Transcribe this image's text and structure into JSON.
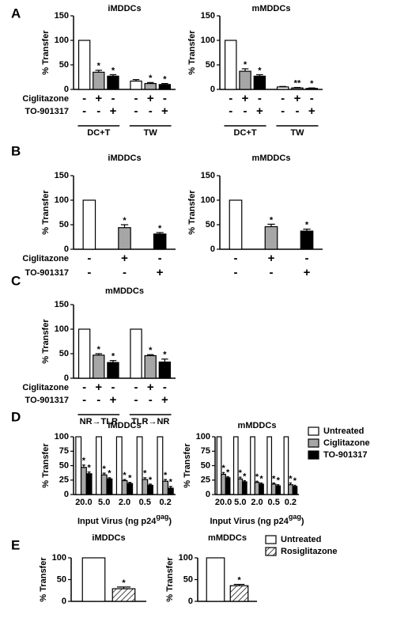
{
  "chart_data": [
    {
      "type": "bar",
      "panel": "A",
      "title": "iMDDCs",
      "y_label": "% Transfer",
      "ylim": [
        0,
        150
      ],
      "yticks": [
        0,
        50,
        100,
        150
      ],
      "values": [
        100,
        35,
        27,
        17,
        12,
        10
      ],
      "errors": [
        null,
        4,
        3,
        3,
        2,
        2
      ],
      "significance": [
        null,
        "*",
        "*",
        null,
        "*",
        "*"
      ],
      "colors": [
        "#ffffff",
        "#a6a6a6",
        "#000000",
        "#ffffff",
        "#a6a6a6",
        "#000000"
      ],
      "treatments": [
        {
          "name": "Ciglitazone",
          "signs": [
            "-",
            "+",
            "-",
            "-",
            "+",
            "-"
          ]
        },
        {
          "name": "TO-901317",
          "signs": [
            "-",
            "-",
            "+",
            "-",
            "-",
            "+"
          ]
        }
      ],
      "groups": [
        "DC+T",
        "TW"
      ]
    },
    {
      "type": "bar",
      "title": "mMDDCs",
      "y_label": "% Transfer",
      "ylim": [
        0,
        150
      ],
      "yticks": [
        0,
        50,
        100,
        150
      ],
      "values": [
        100,
        37,
        27,
        5,
        3,
        2
      ],
      "errors": [
        null,
        5,
        3,
        1,
        1,
        1
      ],
      "significance": [
        null,
        "*",
        "*",
        null,
        "**",
        "*"
      ],
      "colors": [
        "#ffffff",
        "#a6a6a6",
        "#000000",
        "#ffffff",
        "#a6a6a6",
        "#000000"
      ],
      "treatments": [
        {
          "signs": [
            "-",
            "+",
            "-",
            "-",
            "+",
            "-"
          ]
        },
        {
          "signs": [
            "-",
            "-",
            "+",
            "-",
            "-",
            "+"
          ]
        }
      ],
      "groups": [
        "DC+T",
        "TW"
      ]
    },
    {
      "type": "bar",
      "panel": "B",
      "title": "iMDDCs",
      "y_label": "% Transfer",
      "ylim": [
        0,
        150
      ],
      "yticks": [
        0,
        50,
        100,
        150
      ],
      "values": [
        100,
        44,
        31
      ],
      "errors": [
        null,
        6,
        3
      ],
      "significance": [
        null,
        "*",
        "*"
      ],
      "colors": [
        "#ffffff",
        "#a6a6a6",
        "#000000"
      ],
      "treatments": [
        {
          "name": "Ciglitazone",
          "signs": [
            "-",
            "+",
            "-"
          ]
        },
        {
          "name": "TO-901317",
          "signs": [
            "-",
            "-",
            "+"
          ]
        }
      ]
    },
    {
      "type": "bar",
      "title": "mMDDCs",
      "y_label": "% Transfer",
      "ylim": [
        0,
        150
      ],
      "yticks": [
        0,
        50,
        100,
        150
      ],
      "values": [
        100,
        46,
        37
      ],
      "errors": [
        null,
        5,
        4
      ],
      "significance": [
        null,
        "*",
        "*"
      ],
      "colors": [
        "#ffffff",
        "#a6a6a6",
        "#000000"
      ],
      "treatments": [
        {
          "signs": [
            "-",
            "+",
            "-"
          ]
        },
        {
          "signs": [
            "-",
            "-",
            "+"
          ]
        }
      ]
    },
    {
      "type": "bar",
      "panel": "C",
      "title": "mMDDCs",
      "y_label": "% Transfer",
      "ylim": [
        0,
        150
      ],
      "yticks": [
        0,
        50,
        100,
        150
      ],
      "values": [
        100,
        47,
        32,
        100,
        46,
        33
      ],
      "errors": [
        null,
        3,
        4,
        null,
        2,
        6
      ],
      "significance": [
        null,
        "*",
        "*",
        null,
        "*",
        "*"
      ],
      "colors": [
        "#ffffff",
        "#a6a6a6",
        "#000000",
        "#ffffff",
        "#a6a6a6",
        "#000000"
      ],
      "treatments": [
        {
          "name": "Ciglitazone",
          "signs": [
            "-",
            "+",
            "-",
            "-",
            "+",
            "-"
          ]
        },
        {
          "name": "TO-901317",
          "signs": [
            "-",
            "-",
            "+",
            "-",
            "-",
            "+"
          ]
        }
      ],
      "groups": [
        "NR→TLR",
        "TLR→NR"
      ]
    },
    {
      "type": "grouped_bar",
      "panel": "D",
      "title": "iMDDCs",
      "y_label": "% Transfer",
      "ylim": [
        0,
        100
      ],
      "yticks": [
        0,
        25,
        50,
        75,
        100
      ],
      "categories": [
        "20.0",
        "5.0",
        "2.0",
        "0.5",
        "0.2"
      ],
      "x_label": {
        "text": "Input Virus  (ng p24",
        "sup": "gag",
        "end": ")"
      },
      "series": [
        {
          "color": "#ffffff",
          "values": [
            100,
            100,
            100,
            100,
            100
          ],
          "errors": [
            null,
            null,
            null,
            null,
            null
          ],
          "significance": [
            null,
            null,
            null,
            null,
            null
          ]
        },
        {
          "color": "#a6a6a6",
          "values": [
            47,
            34,
            24,
            26,
            23
          ],
          "errors": [
            4,
            3,
            2,
            3,
            3
          ],
          "significance": [
            "*",
            "*",
            "*",
            "*",
            "*"
          ]
        },
        {
          "color": "#000000",
          "values": [
            36,
            27,
            19,
            16,
            11
          ],
          "errors": [
            3,
            2,
            2,
            2,
            3
          ],
          "significance": [
            "*",
            "*",
            "*",
            "*",
            "*"
          ]
        }
      ]
    },
    {
      "type": "grouped_bar",
      "title": "mMDDCs",
      "y_label": "% Transfer",
      "ylim": [
        0,
        100
      ],
      "yticks": [
        0,
        25,
        50,
        75,
        100
      ],
      "categories": [
        "20.0",
        "5.0",
        "2.0",
        "0.5",
        "0.2"
      ],
      "x_label": {
        "text": "Input Virus  (ng p24",
        "sup": "gag",
        "end": ")"
      },
      "legend": "right",
      "series": [
        {
          "name": "Untreated",
          "color": "#ffffff",
          "values": [
            100,
            100,
            100,
            100,
            100
          ],
          "errors": [
            null,
            null,
            null,
            null,
            null
          ],
          "significance": [
            null,
            null,
            null,
            null,
            null
          ]
        },
        {
          "name": "Ciglitazone",
          "color": "#a6a6a6",
          "values": [
            35,
            27,
            21,
            18,
            17
          ],
          "errors": [
            3,
            3,
            2,
            2,
            3
          ],
          "significance": [
            "*",
            "*",
            "*",
            "*",
            "*"
          ]
        },
        {
          "name": "TO-901317",
          "color": "#000000",
          "values": [
            29,
            22,
            18,
            15,
            14
          ],
          "errors": [
            2,
            2,
            2,
            2,
            2
          ],
          "significance": [
            "*",
            "*",
            "*",
            "*",
            "*"
          ]
        }
      ]
    },
    {
      "type": "grouped_bar",
      "panel": "E",
      "title": "iMDDCs",
      "y_label": "% Transfer",
      "ylim": [
        0,
        100
      ],
      "yticks": [
        0,
        50,
        100
      ],
      "series": [
        {
          "color": "#ffffff",
          "values": [
            100
          ],
          "errors": [
            null
          ],
          "significance": [
            null
          ]
        },
        {
          "pattern": "hatch",
          "values": [
            29
          ],
          "errors": [
            4
          ],
          "significance": [
            "*"
          ]
        }
      ]
    },
    {
      "type": "grouped_bar",
      "title": "mMDDCs",
      "y_label": "% Transfer",
      "ylim": [
        0,
        100
      ],
      "yticks": [
        0,
        50,
        100
      ],
      "legend": "right",
      "series": [
        {
          "name": "Untreated",
          "color": "#ffffff",
          "values": [
            100
          ],
          "errors": [
            null
          ],
          "significance": [
            null
          ]
        },
        {
          "name": "Rosiglitazone",
          "pattern": "hatch",
          "values": [
            36
          ],
          "errors": [
            3
          ],
          "significance": [
            "*"
          ]
        }
      ]
    }
  ]
}
